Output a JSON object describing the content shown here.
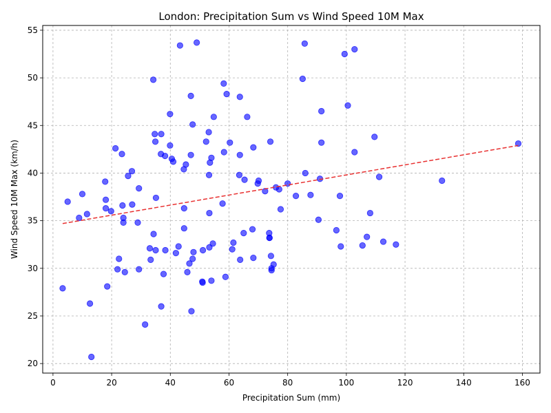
{
  "chart_data": {
    "type": "scatter",
    "title": "London: Precipitation Sum vs Wind Speed 10M Max",
    "xlabel": "Precipitation Sum (mm)",
    "ylabel": "Wind Speed 10M Max (km/h)",
    "xlim": [
      -3.5,
      166
    ],
    "ylim": [
      19,
      55.5
    ],
    "xticks": [
      "0",
      "20",
      "40",
      "60",
      "80",
      "100",
      "120",
      "140",
      "160"
    ],
    "yticks": [
      "20",
      "25",
      "30",
      "35",
      "40",
      "45",
      "50",
      "55"
    ],
    "grid": true,
    "point_color": "#0000ff",
    "trend_color": "#e83030",
    "trendline": {
      "x": [
        3.3,
        158.6
      ],
      "y": [
        34.7,
        42.9
      ]
    },
    "points": [
      [
        3.3,
        27.9
      ],
      [
        5.0,
        37.0
      ],
      [
        8.9,
        35.3
      ],
      [
        10.0,
        37.8
      ],
      [
        11.6,
        35.7
      ],
      [
        12.6,
        26.3
      ],
      [
        13.1,
        20.7
      ],
      [
        17.8,
        39.1
      ],
      [
        18.0,
        37.2
      ],
      [
        18.0,
        36.3
      ],
      [
        18.5,
        28.1
      ],
      [
        19.8,
        36.0
      ],
      [
        21.3,
        42.6
      ],
      [
        22.0,
        29.9
      ],
      [
        22.5,
        31.0
      ],
      [
        23.5,
        42.0
      ],
      [
        23.7,
        36.6
      ],
      [
        24.0,
        35.3
      ],
      [
        24.0,
        34.8
      ],
      [
        24.5,
        29.6
      ],
      [
        25.6,
        39.7
      ],
      [
        26.9,
        40.2
      ],
      [
        27.0,
        36.7
      ],
      [
        28.9,
        34.8
      ],
      [
        29.3,
        38.4
      ],
      [
        29.3,
        29.9
      ],
      [
        31.4,
        24.1
      ],
      [
        33.0,
        32.1
      ],
      [
        33.3,
        30.9
      ],
      [
        34.2,
        49.8
      ],
      [
        34.3,
        33.6
      ],
      [
        34.7,
        44.1
      ],
      [
        34.9,
        43.3
      ],
      [
        35.1,
        37.4
      ],
      [
        35.0,
        31.9
      ],
      [
        36.8,
        42.0
      ],
      [
        36.9,
        44.1
      ],
      [
        36.9,
        26.0
      ],
      [
        37.7,
        29.4
      ],
      [
        38.2,
        41.8
      ],
      [
        38.3,
        31.9
      ],
      [
        39.9,
        46.2
      ],
      [
        39.9,
        42.9
      ],
      [
        40.5,
        41.5
      ],
      [
        41.0,
        41.2
      ],
      [
        41.9,
        31.6
      ],
      [
        42.8,
        32.3
      ],
      [
        43.3,
        53.4
      ],
      [
        44.6,
        40.4
      ],
      [
        44.7,
        36.3
      ],
      [
        44.7,
        34.2
      ],
      [
        45.3,
        40.9
      ],
      [
        45.8,
        29.6
      ],
      [
        46.5,
        30.5
      ],
      [
        47.0,
        48.1
      ],
      [
        47.0,
        41.9
      ],
      [
        47.2,
        25.5
      ],
      [
        47.6,
        45.1
      ],
      [
        47.6,
        31.0
      ],
      [
        47.9,
        31.7
      ],
      [
        49.0,
        53.7
      ],
      [
        50.9,
        28.6
      ],
      [
        51.0,
        28.5
      ],
      [
        51.1,
        31.9
      ],
      [
        52.2,
        43.3
      ],
      [
        53.1,
        44.3
      ],
      [
        53.2,
        39.8
      ],
      [
        53.3,
        35.8
      ],
      [
        53.3,
        32.2
      ],
      [
        53.5,
        41.1
      ],
      [
        54.0,
        41.6
      ],
      [
        54.0,
        28.7
      ],
      [
        54.5,
        32.6
      ],
      [
        54.8,
        45.9
      ],
      [
        57.8,
        36.8
      ],
      [
        58.2,
        49.4
      ],
      [
        58.3,
        42.2
      ],
      [
        58.8,
        29.1
      ],
      [
        59.2,
        48.3
      ],
      [
        60.3,
        43.2
      ],
      [
        61.1,
        32.0
      ],
      [
        61.5,
        32.7
      ],
      [
        63.5,
        39.8
      ],
      [
        63.7,
        48.0
      ],
      [
        63.7,
        41.9
      ],
      [
        63.8,
        30.9
      ],
      [
        65.0,
        33.7
      ],
      [
        65.3,
        39.3
      ],
      [
        66.2,
        45.9
      ],
      [
        68.0,
        34.1
      ],
      [
        68.3,
        42.7
      ],
      [
        68.3,
        31.1
      ],
      [
        69.8,
        38.9
      ],
      [
        70.1,
        39.2
      ],
      [
        72.3,
        38.1
      ],
      [
        73.7,
        33.7
      ],
      [
        73.8,
        33.2
      ],
      [
        73.8,
        33.2
      ],
      [
        74.1,
        43.3
      ],
      [
        74.3,
        31.3
      ],
      [
        74.5,
        30.0
      ],
      [
        74.5,
        29.8
      ],
      [
        75.2,
        30.4
      ],
      [
        76.0,
        38.5
      ],
      [
        77.1,
        38.3
      ],
      [
        77.6,
        36.2
      ],
      [
        80.0,
        38.9
      ],
      [
        82.8,
        37.6
      ],
      [
        85.1,
        49.9
      ],
      [
        85.8,
        53.6
      ],
      [
        86.0,
        40.0
      ],
      [
        87.8,
        37.7
      ],
      [
        90.5,
        35.1
      ],
      [
        91.0,
        39.4
      ],
      [
        91.5,
        46.5
      ],
      [
        91.5,
        43.2
      ],
      [
        96.6,
        34.0
      ],
      [
        97.8,
        37.6
      ],
      [
        98.1,
        32.3
      ],
      [
        99.4,
        52.5
      ],
      [
        100.5,
        47.1
      ],
      [
        102.8,
        53.0
      ],
      [
        102.8,
        42.2
      ],
      [
        105.5,
        32.4
      ],
      [
        107.0,
        33.3
      ],
      [
        108.1,
        35.8
      ],
      [
        109.6,
        43.8
      ],
      [
        111.2,
        39.6
      ],
      [
        112.6,
        32.8
      ],
      [
        116.9,
        32.5
      ],
      [
        132.6,
        39.2
      ],
      [
        158.6,
        43.1
      ]
    ]
  }
}
